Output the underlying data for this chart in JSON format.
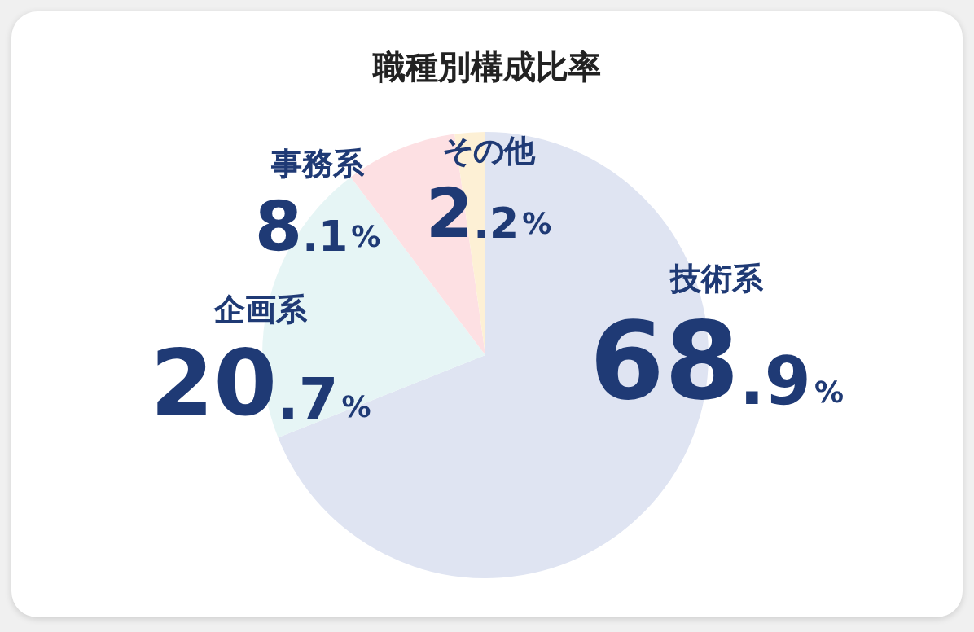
{
  "chart_data": {
    "type": "pie",
    "title": "職種別構成比率",
    "categories": [
      "技術系",
      "企画系",
      "事務系",
      "その他"
    ],
    "values": [
      68.9,
      20.7,
      8.1,
      2.2
    ],
    "colors": [
      "#dfe4f2",
      "#e6f5f5",
      "#fde0e3",
      "#fdf0d5"
    ],
    "value_labels": [
      "68.9%",
      "20.7%",
      "8.1%",
      "2.2%"
    ],
    "legend": false
  }
}
